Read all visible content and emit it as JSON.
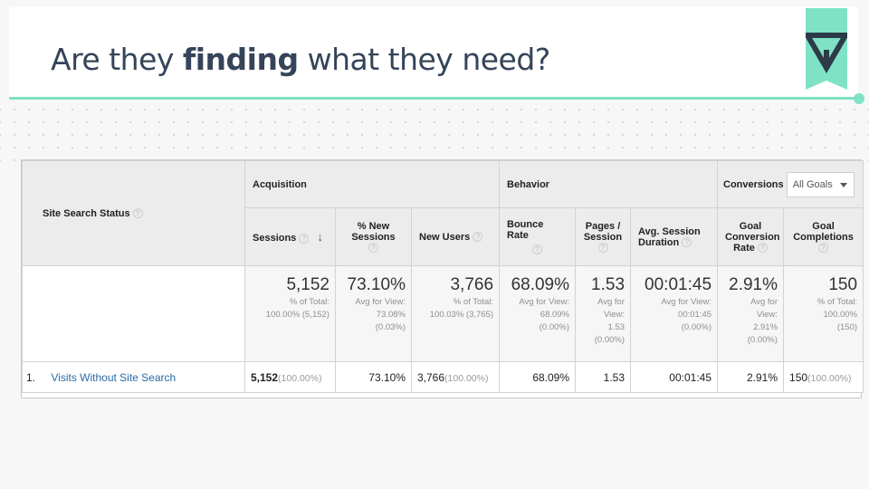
{
  "slide": {
    "title_prefix": "Are they ",
    "title_bold": "finding",
    "title_suffix": " what they need?",
    "accent_color": "#7fe2c5",
    "text_color": "#354459",
    "logo_icon": "triangle-y-logo"
  },
  "table": {
    "dimension_header": "Site Search Status",
    "groups": {
      "acquisition": "Acquisition",
      "behavior": "Behavior",
      "conversions": "Conversions"
    },
    "goal_select": "All Goals",
    "columns": {
      "sessions": "Sessions",
      "new_sessions": "% New Sessions",
      "new_users": "New Users",
      "bounce_rate": "Bounce Rate",
      "pages_session": "Pages / Session",
      "avg_duration": "Avg. Session Duration",
      "conv_rate": "Goal Conversion Rate",
      "goal_completions": "Goal Completions"
    },
    "totals": {
      "sessions": {
        "value": "5,152",
        "l1": "% of Total:",
        "l2": "100.00% (5,152)"
      },
      "new_sessions": {
        "value": "73.10%",
        "l1": "Avg for View:",
        "l2": "73.08%",
        "l3": "(0.03%)"
      },
      "new_users": {
        "value": "3,766",
        "l1": "% of Total:",
        "l2": "100.03% (3,765)"
      },
      "bounce_rate": {
        "value": "68.09%",
        "l1": "Avg for View:",
        "l2": "68.09%",
        "l3": "(0.00%)"
      },
      "pages_session": {
        "value": "1.53",
        "l1": "Avg for",
        "l2": "View:",
        "l3": "1.53",
        "l4": "(0.00%)"
      },
      "avg_duration": {
        "value": "00:01:45",
        "l1": "Avg for View:",
        "l2": "00:01:45",
        "l3": "(0.00%)"
      },
      "conv_rate": {
        "value": "2.91%",
        "l1": "Avg for",
        "l2": "View:",
        "l3": "2.91%",
        "l4": "(0.00%)"
      },
      "goal_completions": {
        "value": "150",
        "l1": "% of Total:",
        "l2": "100.00%",
        "l3": "(150)"
      }
    },
    "rows": [
      {
        "index": "1.",
        "label": "Visits Without Site Search",
        "sessions": "5,152",
        "sessions_pct": "(100.00%)",
        "new_sessions": "73.10%",
        "new_users": "3,766",
        "new_users_pct": "(100.00%)",
        "bounce_rate": "68.09%",
        "pages_session": "1.53",
        "avg_duration": "00:01:45",
        "conv_rate": "2.91%",
        "goal_completions": "150",
        "goal_completions_pct": "(100.00%)"
      }
    ]
  }
}
